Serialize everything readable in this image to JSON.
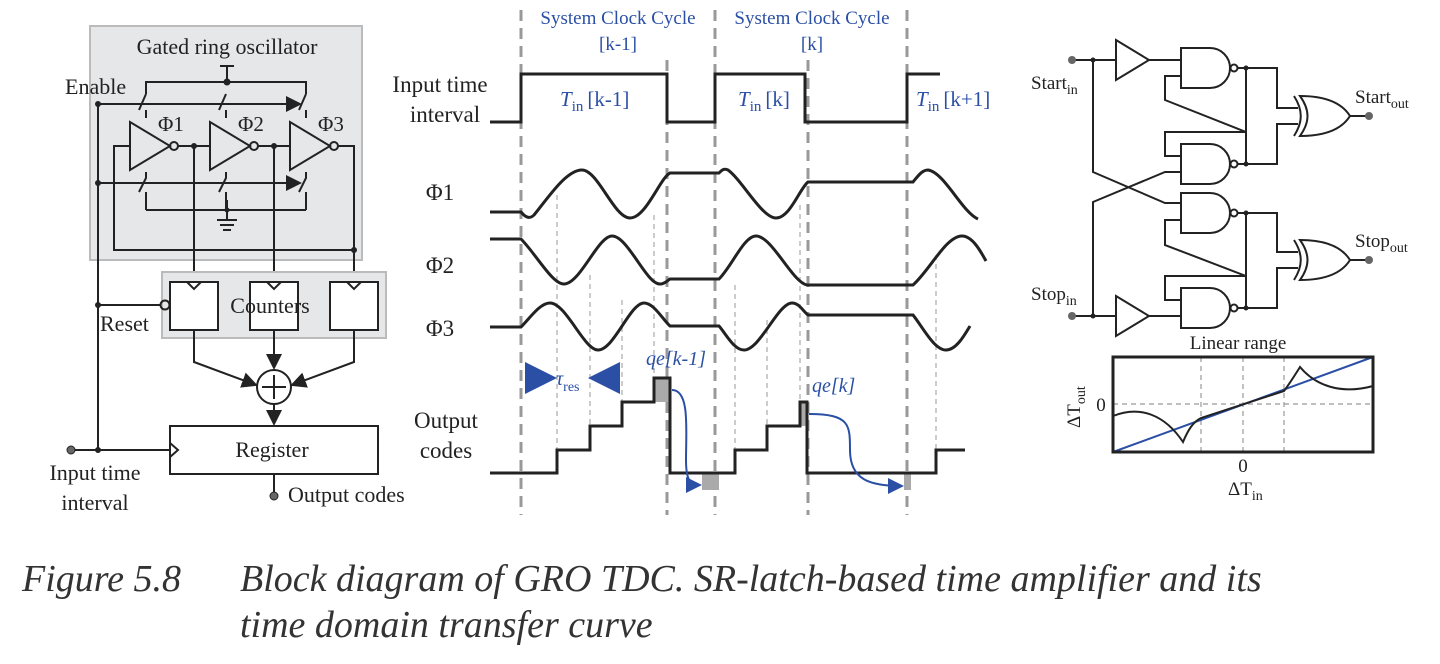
{
  "left_block": {
    "gro_title": "Gated ring oscillator",
    "enable": "Enable",
    "phases": [
      "Φ1",
      "Φ2",
      "Φ3"
    ],
    "counters": "Counters",
    "reset": "Reset",
    "register": "Register",
    "input_line1": "Input time",
    "input_line2": "interval",
    "output": "Output codes"
  },
  "timing": {
    "cycle_label": "System Clock Cycle",
    "cycle_index": [
      "[k-1]",
      "[k]"
    ],
    "input_line1": "Input time",
    "input_line2": "interval",
    "tin": [
      "T",
      "in",
      "[k-1]",
      "[k]",
      "[k+1]"
    ],
    "phases": [
      "Φ1",
      "Φ2",
      "Φ3"
    ],
    "output_line1": "Output",
    "output_line2": "codes",
    "tau": "τ",
    "tau_sub": "res",
    "qe_prev": "qe[k-1]",
    "qe_curr": "qe[k]",
    "accent_color": "#2a4fa5"
  },
  "latch": {
    "start_in": "Start",
    "stop_in": "Stop",
    "in_sub": "in",
    "start_out": "Start",
    "stop_out": "Stop",
    "out_sub": "out"
  },
  "transfer_curve": {
    "title": "Linear range",
    "xlabel": "ΔT",
    "xlabel_sub": "in",
    "ylabel": "ΔT",
    "ylabel_sub": "out",
    "x_zero": "0",
    "y_zero": "0"
  },
  "caption": {
    "number": "Figure 5.8",
    "line1": "Block diagram of GRO TDC. SR-latch-based time amplifier and its",
    "line2": "time domain transfer curve"
  }
}
